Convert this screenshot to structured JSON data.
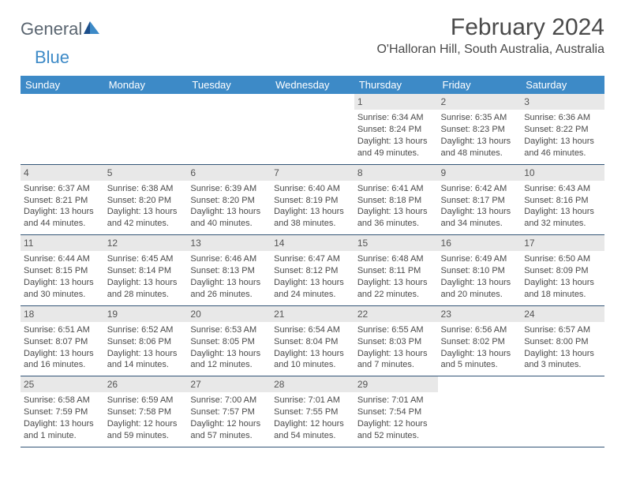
{
  "brand": {
    "part1": "General",
    "part2": "Blue"
  },
  "title": "February 2024",
  "location": "O'Halloran Hill, South Australia, Australia",
  "colors": {
    "header_bg": "#3d8ac7",
    "header_text": "#ffffff",
    "daynum_bg": "#e8e8e8",
    "text": "#4a4a4a",
    "rule": "#335577"
  },
  "day_labels": [
    "Sunday",
    "Monday",
    "Tuesday",
    "Wednesday",
    "Thursday",
    "Friday",
    "Saturday"
  ],
  "weeks": [
    [
      null,
      null,
      null,
      null,
      {
        "n": "1",
        "sr": "Sunrise: 6:34 AM",
        "ss": "Sunset: 8:24 PM",
        "d1": "Daylight: 13 hours",
        "d2": "and 49 minutes."
      },
      {
        "n": "2",
        "sr": "Sunrise: 6:35 AM",
        "ss": "Sunset: 8:23 PM",
        "d1": "Daylight: 13 hours",
        "d2": "and 48 minutes."
      },
      {
        "n": "3",
        "sr": "Sunrise: 6:36 AM",
        "ss": "Sunset: 8:22 PM",
        "d1": "Daylight: 13 hours",
        "d2": "and 46 minutes."
      }
    ],
    [
      {
        "n": "4",
        "sr": "Sunrise: 6:37 AM",
        "ss": "Sunset: 8:21 PM",
        "d1": "Daylight: 13 hours",
        "d2": "and 44 minutes."
      },
      {
        "n": "5",
        "sr": "Sunrise: 6:38 AM",
        "ss": "Sunset: 8:20 PM",
        "d1": "Daylight: 13 hours",
        "d2": "and 42 minutes."
      },
      {
        "n": "6",
        "sr": "Sunrise: 6:39 AM",
        "ss": "Sunset: 8:20 PM",
        "d1": "Daylight: 13 hours",
        "d2": "and 40 minutes."
      },
      {
        "n": "7",
        "sr": "Sunrise: 6:40 AM",
        "ss": "Sunset: 8:19 PM",
        "d1": "Daylight: 13 hours",
        "d2": "and 38 minutes."
      },
      {
        "n": "8",
        "sr": "Sunrise: 6:41 AM",
        "ss": "Sunset: 8:18 PM",
        "d1": "Daylight: 13 hours",
        "d2": "and 36 minutes."
      },
      {
        "n": "9",
        "sr": "Sunrise: 6:42 AM",
        "ss": "Sunset: 8:17 PM",
        "d1": "Daylight: 13 hours",
        "d2": "and 34 minutes."
      },
      {
        "n": "10",
        "sr": "Sunrise: 6:43 AM",
        "ss": "Sunset: 8:16 PM",
        "d1": "Daylight: 13 hours",
        "d2": "and 32 minutes."
      }
    ],
    [
      {
        "n": "11",
        "sr": "Sunrise: 6:44 AM",
        "ss": "Sunset: 8:15 PM",
        "d1": "Daylight: 13 hours",
        "d2": "and 30 minutes."
      },
      {
        "n": "12",
        "sr": "Sunrise: 6:45 AM",
        "ss": "Sunset: 8:14 PM",
        "d1": "Daylight: 13 hours",
        "d2": "and 28 minutes."
      },
      {
        "n": "13",
        "sr": "Sunrise: 6:46 AM",
        "ss": "Sunset: 8:13 PM",
        "d1": "Daylight: 13 hours",
        "d2": "and 26 minutes."
      },
      {
        "n": "14",
        "sr": "Sunrise: 6:47 AM",
        "ss": "Sunset: 8:12 PM",
        "d1": "Daylight: 13 hours",
        "d2": "and 24 minutes."
      },
      {
        "n": "15",
        "sr": "Sunrise: 6:48 AM",
        "ss": "Sunset: 8:11 PM",
        "d1": "Daylight: 13 hours",
        "d2": "and 22 minutes."
      },
      {
        "n": "16",
        "sr": "Sunrise: 6:49 AM",
        "ss": "Sunset: 8:10 PM",
        "d1": "Daylight: 13 hours",
        "d2": "and 20 minutes."
      },
      {
        "n": "17",
        "sr": "Sunrise: 6:50 AM",
        "ss": "Sunset: 8:09 PM",
        "d1": "Daylight: 13 hours",
        "d2": "and 18 minutes."
      }
    ],
    [
      {
        "n": "18",
        "sr": "Sunrise: 6:51 AM",
        "ss": "Sunset: 8:07 PM",
        "d1": "Daylight: 13 hours",
        "d2": "and 16 minutes."
      },
      {
        "n": "19",
        "sr": "Sunrise: 6:52 AM",
        "ss": "Sunset: 8:06 PM",
        "d1": "Daylight: 13 hours",
        "d2": "and 14 minutes."
      },
      {
        "n": "20",
        "sr": "Sunrise: 6:53 AM",
        "ss": "Sunset: 8:05 PM",
        "d1": "Daylight: 13 hours",
        "d2": "and 12 minutes."
      },
      {
        "n": "21",
        "sr": "Sunrise: 6:54 AM",
        "ss": "Sunset: 8:04 PM",
        "d1": "Daylight: 13 hours",
        "d2": "and 10 minutes."
      },
      {
        "n": "22",
        "sr": "Sunrise: 6:55 AM",
        "ss": "Sunset: 8:03 PM",
        "d1": "Daylight: 13 hours",
        "d2": "and 7 minutes."
      },
      {
        "n": "23",
        "sr": "Sunrise: 6:56 AM",
        "ss": "Sunset: 8:02 PM",
        "d1": "Daylight: 13 hours",
        "d2": "and 5 minutes."
      },
      {
        "n": "24",
        "sr": "Sunrise: 6:57 AM",
        "ss": "Sunset: 8:00 PM",
        "d1": "Daylight: 13 hours",
        "d2": "and 3 minutes."
      }
    ],
    [
      {
        "n": "25",
        "sr": "Sunrise: 6:58 AM",
        "ss": "Sunset: 7:59 PM",
        "d1": "Daylight: 13 hours",
        "d2": "and 1 minute."
      },
      {
        "n": "26",
        "sr": "Sunrise: 6:59 AM",
        "ss": "Sunset: 7:58 PM",
        "d1": "Daylight: 12 hours",
        "d2": "and 59 minutes."
      },
      {
        "n": "27",
        "sr": "Sunrise: 7:00 AM",
        "ss": "Sunset: 7:57 PM",
        "d1": "Daylight: 12 hours",
        "d2": "and 57 minutes."
      },
      {
        "n": "28",
        "sr": "Sunrise: 7:01 AM",
        "ss": "Sunset: 7:55 PM",
        "d1": "Daylight: 12 hours",
        "d2": "and 54 minutes."
      },
      {
        "n": "29",
        "sr": "Sunrise: 7:01 AM",
        "ss": "Sunset: 7:54 PM",
        "d1": "Daylight: 12 hours",
        "d2": "and 52 minutes."
      },
      null,
      null
    ]
  ]
}
